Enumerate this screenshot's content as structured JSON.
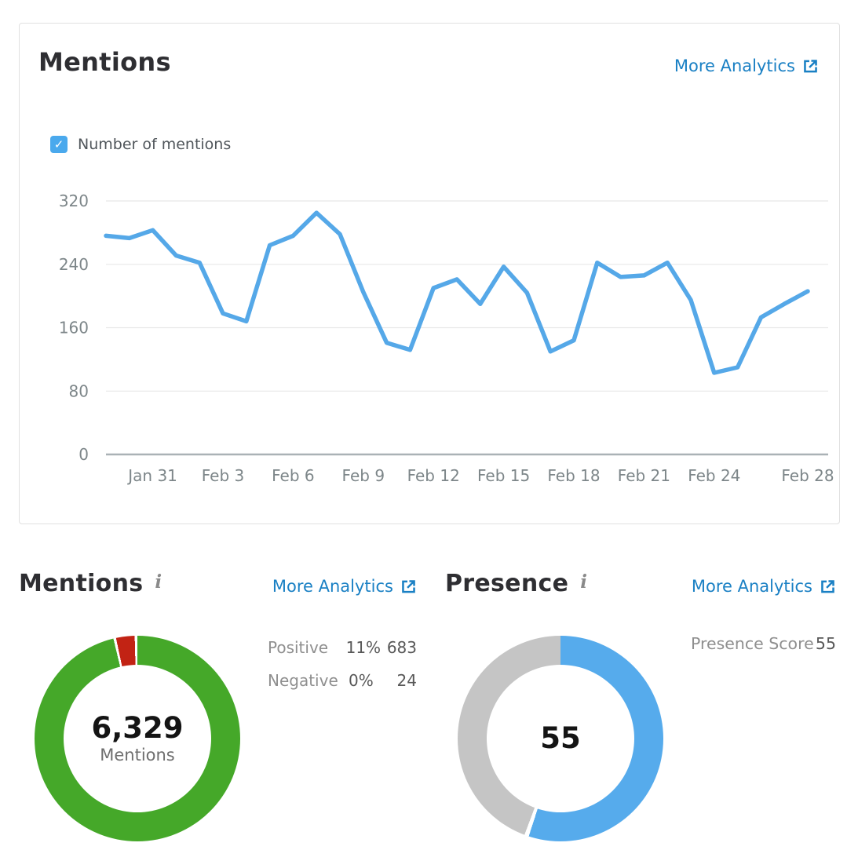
{
  "links": {
    "more_analytics": "More Analytics"
  },
  "icons": {
    "external_link": "external-link-icon",
    "info_glyph": "i",
    "check_glyph": "✓"
  },
  "colors": {
    "link_blue": "#1a80c4",
    "line_blue": "#55a8e8",
    "checkbox_blue": "#4aa9ed",
    "donut_blue": "#56abec",
    "donut_green": "#45a829",
    "donut_red": "#c22314",
    "donut_gray": "#c5c5c5",
    "grid_line": "#e8e8e8",
    "axis_line": "#aab2b6",
    "axis_text": "#7d8689",
    "title_text": "#2e2e32"
  },
  "top_card": {
    "title": "Mentions",
    "legend_label": "Number of mentions",
    "legend_checked": true
  },
  "mentions_summary": {
    "title": "Mentions",
    "total": "6,329",
    "total_label": "Mentions",
    "stats": [
      {
        "label": "Positive",
        "pct": "11%",
        "count": "683"
      },
      {
        "label": "Negative",
        "pct": "0%",
        "count": "24"
      }
    ]
  },
  "presence_summary": {
    "title": "Presence",
    "center_value": "55",
    "score_label": "Presence Score",
    "score_value": "55"
  },
  "chart_data": [
    {
      "type": "line",
      "title": "Mentions",
      "series_name": "Number of mentions",
      "dates": [
        "Jan 29",
        "Jan 30",
        "Jan 31",
        "Feb 1",
        "Feb 2",
        "Feb 3",
        "Feb 4",
        "Feb 5",
        "Feb 6",
        "Feb 7",
        "Feb 8",
        "Feb 9",
        "Feb 10",
        "Feb 11",
        "Feb 12",
        "Feb 13",
        "Feb 14",
        "Feb 15",
        "Feb 16",
        "Feb 17",
        "Feb 18",
        "Feb 19",
        "Feb 20",
        "Feb 21",
        "Feb 22",
        "Feb 23",
        "Feb 24",
        "Feb 25",
        "Feb 26",
        "Feb 27",
        "Feb 28"
      ],
      "values": [
        276,
        273,
        283,
        251,
        242,
        178,
        168,
        264,
        276,
        305,
        278,
        205,
        141,
        132,
        210,
        221,
        190,
        237,
        204,
        130,
        144,
        242,
        224,
        226,
        242,
        195,
        103,
        110,
        173,
        190,
        206
      ],
      "ylim": [
        0,
        320
      ],
      "yticks": [
        0,
        80,
        160,
        240,
        320
      ],
      "x_tick_labels": [
        "Jan 31",
        "Feb 3",
        "Feb 6",
        "Feb 9",
        "Feb 12",
        "Feb 15",
        "Feb 18",
        "Feb 21",
        "Feb 24",
        "Feb 28"
      ],
      "x_tick_indices": [
        2,
        5,
        8,
        11,
        14,
        17,
        20,
        23,
        26,
        30
      ],
      "line_color": "#55a8e8",
      "grid": true,
      "legend_position": "top-left"
    },
    {
      "type": "pie",
      "subtype": "donut",
      "title": "Mentions",
      "center_value": "6,329",
      "center_label": "Mentions",
      "total_mentions": 6329,
      "legend": [
        {
          "label": "Positive",
          "pct": "11%",
          "count": 683
        },
        {
          "label": "Negative",
          "pct": "0%",
          "count": 24
        }
      ],
      "segments": [
        {
          "name": "positive-other",
          "color": "#45a829",
          "from": 0,
          "to": 346.5
        },
        {
          "name": "gap",
          "color": "#ffffff",
          "from": 346.5,
          "to": 348
        },
        {
          "name": "negative",
          "color": "#c22314",
          "from": 348,
          "to": 358.5
        },
        {
          "name": "gap",
          "color": "#ffffff",
          "from": 358.5,
          "to": 360
        }
      ]
    },
    {
      "type": "pie",
      "subtype": "donut",
      "title": "Presence",
      "center_value": "55",
      "presence_score": 55,
      "segments": [
        {
          "name": "score",
          "color": "#56abec",
          "from": 0,
          "to": 198
        },
        {
          "name": "gap",
          "color": "#ffffff",
          "from": 198,
          "to": 200.5
        },
        {
          "name": "remainder",
          "color": "#c5c5c5",
          "from": 200.5,
          "to": 360
        }
      ]
    }
  ]
}
